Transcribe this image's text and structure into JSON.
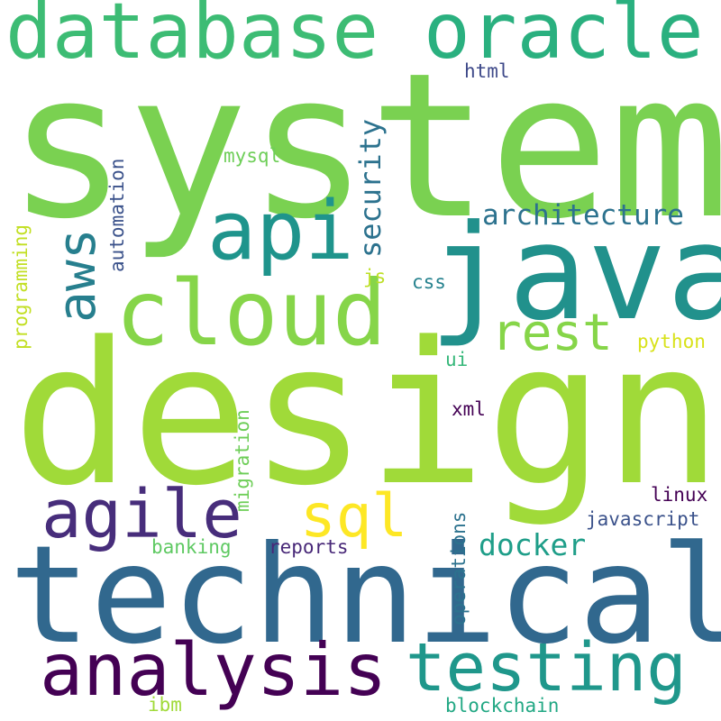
{
  "word_cloud": {
    "words": [
      {
        "text": "system",
        "color": "#7ad151"
      },
      {
        "text": "design",
        "color": "#a0da39"
      },
      {
        "text": "technical",
        "color": "#31688e"
      },
      {
        "text": "java",
        "color": "#21918c"
      },
      {
        "text": "database",
        "color": "#3dbc74"
      },
      {
        "text": "oracle",
        "color": "#2ab07f"
      },
      {
        "text": "cloud",
        "color": "#86d549"
      },
      {
        "text": "api",
        "color": "#1f948c"
      },
      {
        "text": "analysis",
        "color": "#440154"
      },
      {
        "text": "testing",
        "color": "#1f978b"
      },
      {
        "text": "agile",
        "color": "#472d7b"
      },
      {
        "text": "aws",
        "color": "#277f8e"
      },
      {
        "text": "rest",
        "color": "#86d549"
      },
      {
        "text": "sql",
        "color": "#fde725"
      },
      {
        "text": "security",
        "color": "#2c728e"
      },
      {
        "text": "architecture",
        "color": "#2c728e"
      },
      {
        "text": "docker",
        "color": "#1f9e89"
      },
      {
        "text": "linux",
        "color": "#440154"
      },
      {
        "text": "javascript",
        "color": "#3b528b"
      },
      {
        "text": "banking",
        "color": "#5ec962"
      },
      {
        "text": "reports",
        "color": "#482878"
      },
      {
        "text": "operations",
        "color": "#2c728e"
      },
      {
        "text": "blockchain",
        "color": "#22a884"
      },
      {
        "text": "ibm",
        "color": "#a0da39"
      },
      {
        "text": "html",
        "color": "#3e4989"
      },
      {
        "text": "mysql",
        "color": "#6ece58"
      },
      {
        "text": "automation",
        "color": "#3b528b"
      },
      {
        "text": "programming",
        "color": "#c2df23"
      },
      {
        "text": "js",
        "color": "#bddf26"
      },
      {
        "text": "css",
        "color": "#26828e"
      },
      {
        "text": "python",
        "color": "#d8e219"
      },
      {
        "text": "ui",
        "color": "#35b779"
      },
      {
        "text": "xml",
        "color": "#440154"
      },
      {
        "text": "migration",
        "color": "#6ece58"
      }
    ]
  }
}
